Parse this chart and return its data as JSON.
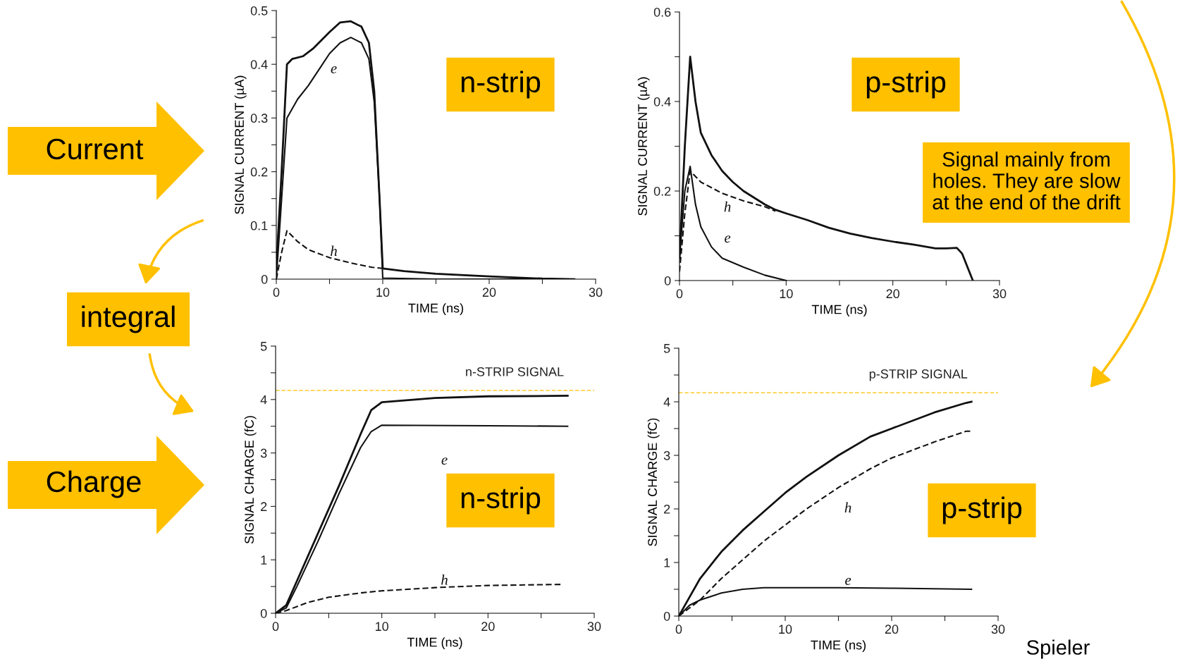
{
  "chart_data": [
    {
      "type": "line",
      "xlabel": "TIME (ns)",
      "ylabel": "SIGNAL CURRENT (µA)",
      "xlim": [
        0,
        30
      ],
      "ylim": [
        0,
        0.5
      ],
      "xticks": [
        0,
        {
          "value": 5,
          "label": null
        },
        10,
        {
          "value": 15,
          "label": null
        },
        20,
        {
          "value": 25,
          "label": null
        },
        30
      ],
      "yticks": [
        0,
        {
          "value": 0.05,
          "label": null
        },
        0.1,
        {
          "value": 0.15,
          "label": null
        },
        0.2,
        {
          "value": 0.25,
          "label": null
        },
        0.3,
        {
          "value": 0.35,
          "label": null
        },
        0.4,
        {
          "value": 0.45,
          "label": null
        },
        0.5
      ],
      "annotations": [
        "n-strip",
        "Current",
        "integral"
      ],
      "series": [
        {
          "color": "#111111",
          "x": [
            0,
            0.5,
            1,
            1.5,
            2.5,
            3.5,
            5,
            6,
            7,
            8,
            8.7,
            9.2,
            9.7,
            10,
            12,
            15,
            20,
            25,
            28
          ],
          "values": [
            0.02,
            0.2,
            0.4,
            0.41,
            0.415,
            0.43,
            0.46,
            0.478,
            0.48,
            0.47,
            0.44,
            0.35,
            0.15,
            0.02,
            0.015,
            0.01,
            0.005,
            0.001,
            0
          ]
        },
        {
          "name": "e",
          "color": "#111111",
          "x": [
            0,
            0.5,
            1,
            2,
            3,
            4,
            5,
            6,
            7,
            8,
            8.7,
            9.2,
            9.7,
            10,
            15,
            28
          ],
          "values": [
            0,
            0.15,
            0.3,
            0.335,
            0.36,
            0.39,
            0.42,
            0.44,
            0.45,
            0.44,
            0.41,
            0.33,
            0.15,
            0.002,
            0,
            0
          ]
        },
        {
          "name": "h",
          "color": "#111111",
          "line_style": "dashed",
          "x": [
            0,
            0.5,
            1,
            2,
            3,
            5,
            7,
            9,
            10
          ],
          "values": [
            0,
            0.05,
            0.09,
            0.07,
            0.055,
            0.04,
            0.03,
            0.022,
            0.02
          ]
        }
      ]
    },
    {
      "type": "line",
      "xlabel": "TIME (ns)",
      "ylabel": "SIGNAL CURRENT (µA)",
      "xlim": [
        0,
        30
      ],
      "ylim": [
        0,
        0.6
      ],
      "xticks": [
        0,
        {
          "value": 5,
          "label": null
        },
        10,
        {
          "value": 15,
          "label": null
        },
        20,
        {
          "value": 25,
          "label": null
        },
        30
      ],
      "yticks": [
        0,
        {
          "value": 0.1,
          "label": null
        },
        0.2,
        {
          "value": 0.3,
          "label": null
        },
        0.4,
        {
          "value": 0.5,
          "label": null
        },
        0.6
      ],
      "annotations": [
        "p-strip",
        "Signal mainly from\nholes. They are slow\nat the end of the drift"
      ],
      "series": [
        {
          "color": "#111111",
          "x": [
            0,
            0.5,
            1,
            1.5,
            2,
            3,
            4,
            5,
            6,
            8,
            9,
            10,
            12,
            14,
            16,
            18,
            20,
            22,
            24,
            25,
            26,
            26.5,
            27,
            27.5
          ],
          "values": [
            0.05,
            0.3,
            0.5,
            0.4,
            0.33,
            0.28,
            0.245,
            0.22,
            0.2,
            0.17,
            0.158,
            0.15,
            0.135,
            0.118,
            0.105,
            0.095,
            0.087,
            0.08,
            0.072,
            0.072,
            0.073,
            0.06,
            0.03,
            0
          ]
        },
        {
          "name": "h",
          "color": "#111111",
          "line_style": "dashed",
          "x": [
            0,
            0.5,
            1,
            2,
            4,
            6,
            8,
            9
          ],
          "values": [
            0.02,
            0.15,
            0.245,
            0.22,
            0.195,
            0.178,
            0.165,
            0.155
          ]
        },
        {
          "name": "e",
          "color": "#111111",
          "x": [
            0,
            0.5,
            1,
            1.5,
            2,
            3,
            4,
            6,
            8,
            10
          ],
          "values": [
            0.05,
            0.2,
            0.255,
            0.17,
            0.12,
            0.075,
            0.05,
            0.03,
            0.012,
            0
          ]
        }
      ]
    },
    {
      "type": "line",
      "title": "n-STRIP SIGNAL",
      "xlabel": "TIME (ns)",
      "ylabel": "SIGNAL CHARGE (fC)",
      "xlim": [
        0,
        30
      ],
      "ylim": [
        0,
        5
      ],
      "xticks": [
        0,
        {
          "value": 5,
          "label": null
        },
        10,
        {
          "value": 15,
          "label": null
        },
        20,
        {
          "value": 25,
          "label": null
        },
        30
      ],
      "yticks": [
        0,
        {
          "value": 0.5,
          "label": null
        },
        1,
        {
          "value": 1.5,
          "label": null
        },
        2,
        {
          "value": 2.5,
          "label": null
        },
        3,
        {
          "value": 3.5,
          "label": null
        },
        4,
        {
          "value": 4.5,
          "label": null
        },
        5
      ],
      "ref_lines": [
        {
          "axis": "y",
          "value": 4.17,
          "color": "#ffc000",
          "line_style": "dashed"
        }
      ],
      "annotations": [
        "n-strip",
        "Charge"
      ],
      "series": [
        {
          "color": "#111111",
          "x": [
            0,
            1,
            2,
            4,
            6,
            8,
            9,
            10,
            15,
            20,
            27.5
          ],
          "values": [
            0,
            0.15,
            0.6,
            1.5,
            2.4,
            3.35,
            3.8,
            3.95,
            4.03,
            4.06,
            4.07
          ]
        },
        {
          "name": "e",
          "color": "#111111",
          "x": [
            0,
            1,
            2,
            4,
            6,
            8,
            9,
            10,
            20,
            27.5
          ],
          "values": [
            0,
            0.1,
            0.5,
            1.35,
            2.25,
            3.1,
            3.4,
            3.52,
            3.51,
            3.5
          ]
        },
        {
          "name": "h",
          "color": "#111111",
          "line_style": "dashed",
          "x": [
            0,
            1,
            3,
            5,
            8,
            10,
            15,
            20,
            27
          ],
          "values": [
            0,
            0.05,
            0.2,
            0.3,
            0.38,
            0.42,
            0.48,
            0.52,
            0.54
          ]
        }
      ]
    },
    {
      "type": "line",
      "title": "p-STRIP SIGNAL",
      "xlabel": "TIME (ns)",
      "ylabel": "SIGNAL CHARGE (fC)",
      "xlim": [
        0,
        30
      ],
      "ylim": [
        0,
        5
      ],
      "xticks": [
        0,
        {
          "value": 5,
          "label": null
        },
        10,
        {
          "value": 15,
          "label": null
        },
        20,
        {
          "value": 25,
          "label": null
        },
        30
      ],
      "yticks": [
        0,
        {
          "value": 0.5,
          "label": null
        },
        1,
        {
          "value": 1.5,
          "label": null
        },
        2,
        {
          "value": 2.5,
          "label": null
        },
        3,
        {
          "value": 3.5,
          "label": null
        },
        4,
        {
          "value": 4.5,
          "label": null
        },
        5
      ],
      "ref_lines": [
        {
          "axis": "y",
          "value": 4.17,
          "color": "#ffc000",
          "line_style": "dashed"
        }
      ],
      "annotations": [
        "p-strip",
        "Spieler"
      ],
      "series": [
        {
          "color": "#111111",
          "x": [
            0,
            1,
            2,
            4,
            6,
            8,
            10,
            12,
            15,
            18,
            20,
            24,
            27,
            27.5
          ],
          "values": [
            0,
            0.35,
            0.7,
            1.2,
            1.6,
            1.95,
            2.3,
            2.6,
            3.0,
            3.35,
            3.5,
            3.8,
            3.98,
            4.0
          ]
        },
        {
          "name": "h",
          "color": "#111111",
          "line_style": "dashed",
          "x": [
            0,
            2,
            4,
            6,
            8,
            10,
            12,
            15,
            18,
            20,
            24,
            27,
            27.5
          ],
          "values": [
            0,
            0.3,
            0.7,
            1.05,
            1.4,
            1.7,
            2.0,
            2.4,
            2.75,
            2.95,
            3.25,
            3.45,
            3.45
          ]
        },
        {
          "name": "e",
          "color": "#111111",
          "x": [
            0,
            1,
            2,
            4,
            6,
            8,
            15,
            20,
            27.5
          ],
          "values": [
            0,
            0.2,
            0.3,
            0.43,
            0.5,
            0.53,
            0.53,
            0.52,
            0.5
          ]
        }
      ]
    }
  ]
}
